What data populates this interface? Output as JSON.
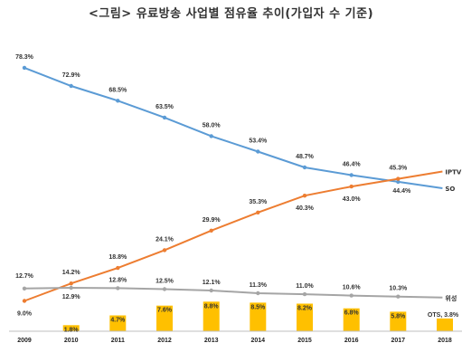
{
  "chart_data": {
    "type": "line",
    "title": "<그림> 유료방송 사업별 점유율 추이(가입자 수 기준)",
    "categories": [
      "2009",
      "2010",
      "2011",
      "2012",
      "2013",
      "2014",
      "2015",
      "2016",
      "2017",
      "2018"
    ],
    "series": [
      {
        "name": "SO",
        "type": "line",
        "color": "#5b9bd5",
        "values": [
          78.3,
          72.9,
          68.5,
          63.5,
          58.0,
          53.4,
          48.7,
          46.4,
          44.4,
          null
        ],
        "labels": [
          "78.3%",
          "72.9%",
          "68.5%",
          "63.5%",
          "58.0%",
          "53.4%",
          "48.7%",
          "46.4%",
          "44.4%",
          ""
        ]
      },
      {
        "name": "IPTV",
        "type": "line",
        "color": "#ed7d31",
        "values": [
          9.0,
          14.2,
          18.8,
          24.1,
          29.9,
          35.3,
          40.3,
          43.0,
          45.3,
          null
        ],
        "labels": [
          "9.0%",
          "14.2%",
          "18.8%",
          "24.1%",
          "29.9%",
          "35.3%",
          "40.3%",
          "43.0%",
          "45.3%",
          ""
        ]
      },
      {
        "name": "위성",
        "type": "line",
        "color": "#a5a5a5",
        "values": [
          12.7,
          12.9,
          12.8,
          12.5,
          12.1,
          11.3,
          11.0,
          10.6,
          10.3,
          null
        ],
        "labels": [
          "12.7%",
          "12.9%",
          "12.8%",
          "12.5%",
          "12.1%",
          "11.3%",
          "11.0%",
          "10.6%",
          "10.3%",
          ""
        ]
      },
      {
        "name": "OTS",
        "type": "bar",
        "color": "#ffc000",
        "values": [
          null,
          1.8,
          4.7,
          7.6,
          8.8,
          8.5,
          8.2,
          6.8,
          5.8,
          3.8
        ],
        "labels": [
          "",
          "1.8%",
          "4.7%",
          "7.6%",
          "8.8%",
          "8.5%",
          "8.2%",
          "6.8%",
          "5.8%",
          "OTS, 3.8%"
        ]
      }
    ],
    "end_labels": [
      "IPTV",
      "SO",
      "위성"
    ],
    "ylim": [
      0,
      85
    ],
    "grid": false,
    "xlabel": "",
    "ylabel": ""
  }
}
